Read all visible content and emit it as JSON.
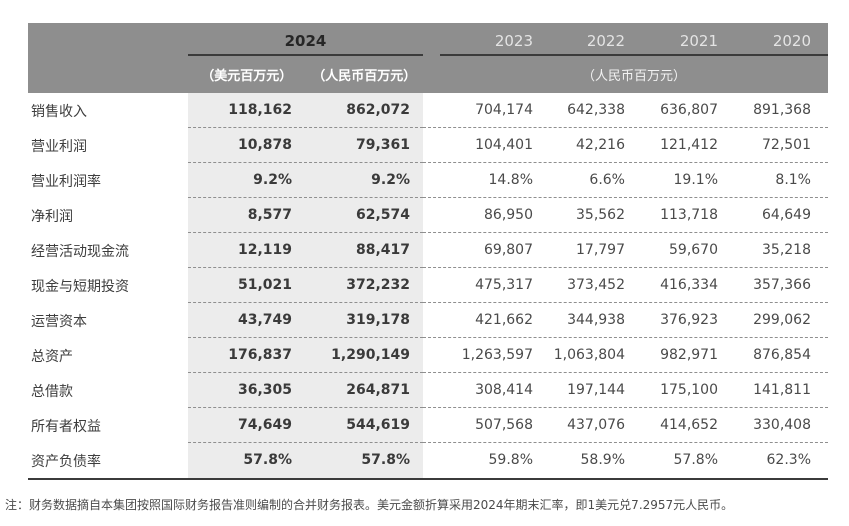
{
  "header": {
    "year_current": "2024",
    "unit_usd": "（美元百万元）",
    "unit_rmb": "（人民币百万元）",
    "years": [
      "2023",
      "2022",
      "2021",
      "2020"
    ],
    "years_unit": "（人民币百万元）"
  },
  "rows": [
    {
      "label": "销售收入",
      "usd": "118,162",
      "rmb": "862,072",
      "values": [
        "704,174",
        "642,338",
        "636,807",
        "891,368"
      ]
    },
    {
      "label": "营业利润",
      "usd": "10,878",
      "rmb": "79,361",
      "values": [
        "104,401",
        "42,216",
        "121,412",
        "72,501"
      ]
    },
    {
      "label": "营业利润率",
      "usd": "9.2%",
      "rmb": "9.2%",
      "values": [
        "14.8%",
        "6.6%",
        "19.1%",
        "8.1%"
      ]
    },
    {
      "label": "净利润",
      "usd": "8,577",
      "rmb": "62,574",
      "values": [
        "86,950",
        "35,562",
        "113,718",
        "64,649"
      ]
    },
    {
      "label": "经营活动现金流",
      "usd": "12,119",
      "rmb": "88,417",
      "values": [
        "69,807",
        "17,797",
        "59,670",
        "35,218"
      ]
    },
    {
      "label": "现金与短期投资",
      "usd": "51,021",
      "rmb": "372,232",
      "values": [
        "475,317",
        "373,452",
        "416,334",
        "357,366"
      ]
    },
    {
      "label": "运营资本",
      "usd": "43,749",
      "rmb": "319,178",
      "values": [
        "421,662",
        "344,938",
        "376,923",
        "299,062"
      ]
    },
    {
      "label": "总资产",
      "usd": "176,837",
      "rmb": "1,290,149",
      "values": [
        "1,263,597",
        "1,063,804",
        "982,971",
        "876,854"
      ]
    },
    {
      "label": "总借款",
      "usd": "36,305",
      "rmb": "264,871",
      "values": [
        "308,414",
        "197,144",
        "175,100",
        "141,811"
      ]
    },
    {
      "label": "所有者权益",
      "usd": "74,649",
      "rmb": "544,619",
      "values": [
        "507,568",
        "437,076",
        "414,652",
        "330,408"
      ]
    },
    {
      "label": "资产负债率",
      "usd": "57.8%",
      "rmb": "57.8%",
      "values": [
        "59.8%",
        "58.9%",
        "57.8%",
        "62.3%"
      ]
    }
  ],
  "footnote": "注：财务数据摘自本集团按照国际财务报告准则编制的合并财务报表。美元金额折算采用2024年期末汇率，即1美元兑7.2957元人民币。",
  "colors": {
    "header_bg": "#8e8e8e",
    "band_bg": "#ececec",
    "rule_dark": "#3b3b3b",
    "dashed_rule": "#8f8f8f",
    "text_dark": "#3d3d3d"
  }
}
